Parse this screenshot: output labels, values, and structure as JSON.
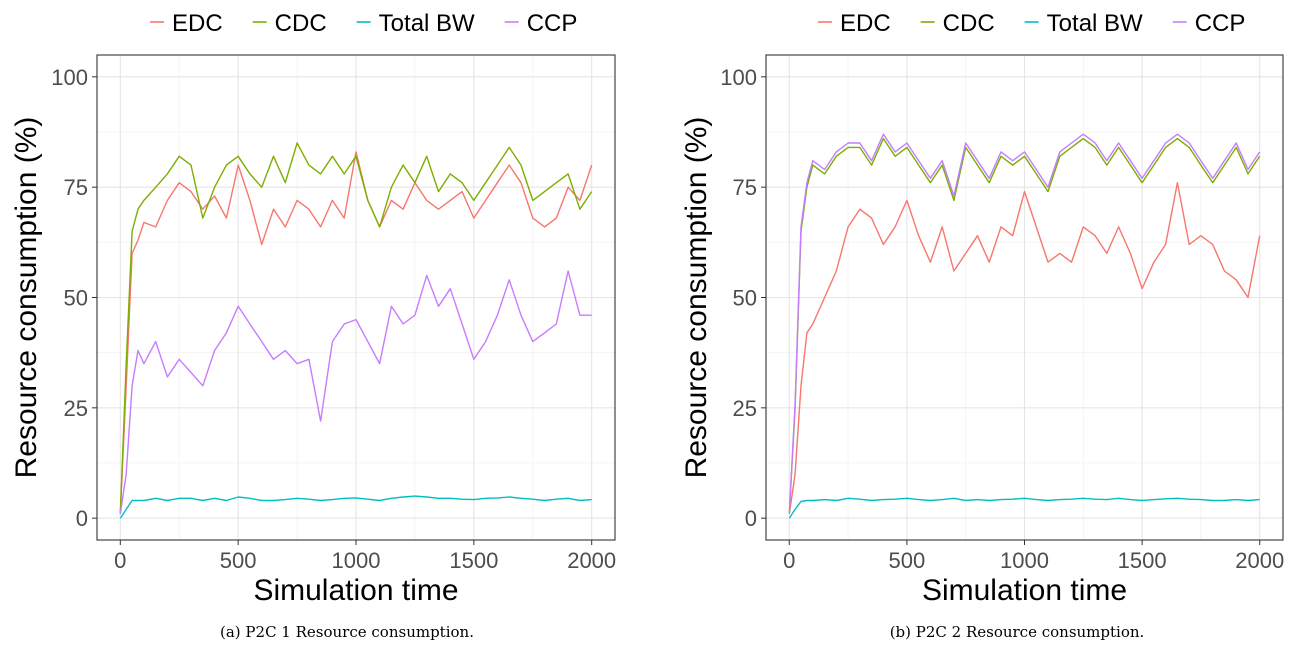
{
  "figure": {
    "captions": [
      "(a) P2C 1 Resource consumption.",
      "(b) P2C 2 Resource consumption."
    ]
  },
  "chart_data": [
    {
      "type": "line",
      "xlabel": "Simulation time",
      "ylabel": "Resource consumption (%)",
      "xlim": [
        0,
        2000
      ],
      "ylim": [
        0,
        100
      ],
      "xticks": [
        0,
        500,
        1000,
        1500,
        2000
      ],
      "yticks": [
        0,
        25,
        50,
        75,
        100
      ],
      "grid": true,
      "legend_position": "top",
      "x": [
        0,
        25,
        50,
        75,
        100,
        150,
        200,
        250,
        300,
        350,
        400,
        450,
        500,
        550,
        600,
        650,
        700,
        750,
        800,
        850,
        900,
        950,
        1000,
        1050,
        1100,
        1150,
        1200,
        1250,
        1300,
        1350,
        1400,
        1450,
        1500,
        1550,
        1600,
        1650,
        1700,
        1750,
        1800,
        1850,
        1900,
        1950,
        2000
      ],
      "series": [
        {
          "name": "EDC",
          "color": "#F8766D",
          "values": [
            1,
            30,
            60,
            63,
            67,
            66,
            72,
            76,
            74,
            70,
            73,
            68,
            80,
            72,
            62,
            70,
            66,
            72,
            70,
            66,
            72,
            68,
            83,
            72,
            66,
            72,
            70,
            76,
            72,
            70,
            72,
            74,
            68,
            72,
            76,
            80,
            76,
            68,
            66,
            68,
            75,
            72,
            80
          ]
        },
        {
          "name": "CDC",
          "color": "#7CAE00",
          "values": [
            1,
            35,
            65,
            70,
            72,
            75,
            78,
            82,
            80,
            68,
            75,
            80,
            82,
            78,
            75,
            82,
            76,
            85,
            80,
            78,
            82,
            78,
            82,
            72,
            66,
            75,
            80,
            76,
            82,
            74,
            78,
            76,
            72,
            76,
            80,
            84,
            80,
            72,
            74,
            76,
            78,
            70,
            74
          ]
        },
        {
          "name": "Total BW",
          "color": "#00BFC4",
          "values": [
            0,
            2,
            4,
            4,
            4,
            4.5,
            4,
            4.5,
            4.5,
            4,
            4.5,
            4,
            4.8,
            4.5,
            4,
            4,
            4.2,
            4.5,
            4.3,
            4,
            4.2,
            4.5,
            4.6,
            4.3,
            4,
            4.5,
            4.8,
            5,
            4.8,
            4.5,
            4.5,
            4.3,
            4.2,
            4.5,
            4.6,
            4.8,
            4.5,
            4.3,
            4,
            4.3,
            4.5,
            4,
            4.2
          ]
        },
        {
          "name": "CCP",
          "color": "#C77CFF",
          "values": [
            1,
            10,
            30,
            38,
            35,
            40,
            32,
            36,
            33,
            30,
            38,
            42,
            48,
            44,
            40,
            36,
            38,
            35,
            36,
            22,
            40,
            44,
            45,
            40,
            35,
            48,
            44,
            46,
            55,
            48,
            52,
            44,
            36,
            40,
            46,
            54,
            46,
            40,
            42,
            44,
            56,
            46,
            46
          ]
        }
      ]
    },
    {
      "type": "line",
      "xlabel": "Simulation time",
      "ylabel": "Resource consumption (%)",
      "xlim": [
        0,
        2000
      ],
      "ylim": [
        0,
        100
      ],
      "xticks": [
        0,
        500,
        1000,
        1500,
        2000
      ],
      "yticks": [
        0,
        25,
        50,
        75,
        100
      ],
      "grid": true,
      "legend_position": "top",
      "x": [
        0,
        25,
        50,
        75,
        100,
        150,
        200,
        250,
        300,
        350,
        400,
        450,
        500,
        550,
        600,
        650,
        700,
        750,
        800,
        850,
        900,
        950,
        1000,
        1050,
        1100,
        1150,
        1200,
        1250,
        1300,
        1350,
        1400,
        1450,
        1500,
        1550,
        1600,
        1650,
        1700,
        1750,
        1800,
        1850,
        1900,
        1950,
        2000
      ],
      "series": [
        {
          "name": "EDC",
          "color": "#F8766D",
          "values": [
            1,
            10,
            30,
            42,
            44,
            50,
            56,
            66,
            70,
            68,
            62,
            66,
            72,
            64,
            58,
            66,
            56,
            60,
            64,
            58,
            66,
            64,
            74,
            66,
            58,
            60,
            58,
            66,
            64,
            60,
            66,
            60,
            52,
            58,
            62,
            76,
            62,
            64,
            62,
            56,
            54,
            50,
            64
          ]
        },
        {
          "name": "CDC",
          "color": "#7CAE00",
          "values": [
            1,
            25,
            65,
            75,
            80,
            78,
            82,
            84,
            84,
            80,
            86,
            82,
            84,
            80,
            76,
            80,
            72,
            84,
            80,
            76,
            82,
            80,
            82,
            78,
            74,
            82,
            84,
            86,
            84,
            80,
            84,
            80,
            76,
            80,
            84,
            86,
            84,
            80,
            76,
            80,
            84,
            78,
            82
          ]
        },
        {
          "name": "Total BW",
          "color": "#00BFC4",
          "values": [
            0,
            2,
            3.8,
            4,
            4,
            4.2,
            4,
            4.5,
            4.3,
            4,
            4.2,
            4.3,
            4.5,
            4.2,
            4,
            4.2,
            4.5,
            4,
            4.2,
            4,
            4.2,
            4.3,
            4.5,
            4.2,
            4,
            4.2,
            4.3,
            4.5,
            4.3,
            4.2,
            4.5,
            4.2,
            4,
            4.2,
            4.4,
            4.5,
            4.3,
            4.2,
            4,
            4,
            4.2,
            4,
            4.2
          ]
        },
        {
          "name": "CCP",
          "color": "#C77CFF",
          "values": [
            1,
            26,
            66,
            76,
            81,
            79,
            83,
            85,
            85,
            81,
            87,
            83,
            85,
            81,
            77,
            81,
            73,
            85,
            81,
            77,
            83,
            81,
            83,
            79,
            75,
            83,
            85,
            87,
            85,
            81,
            85,
            81,
            77,
            81,
            85,
            87,
            85,
            81,
            77,
            81,
            85,
            79,
            83
          ]
        }
      ]
    }
  ]
}
